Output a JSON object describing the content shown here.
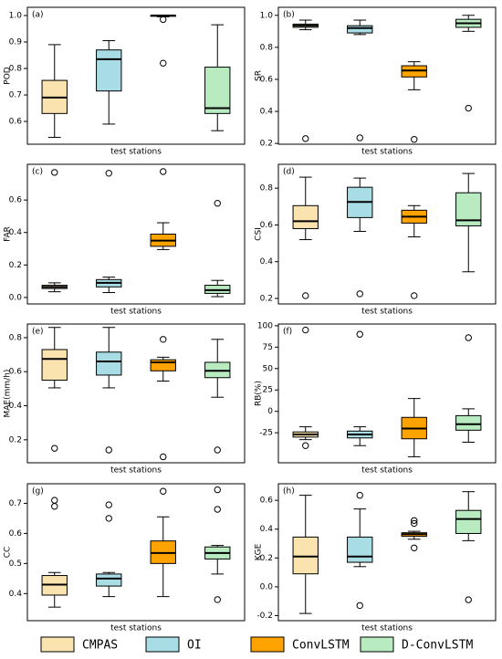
{
  "legend": [
    {
      "name": "CMPAS",
      "color": "#fbe3b0"
    },
    {
      "name": "OI",
      "color": "#a9dde6"
    },
    {
      "name": "ConvLSTM",
      "color": "#ffa300"
    },
    {
      "name": "D-ConvLSTM",
      "color": "#b8ecc0"
    }
  ],
  "chart_data": [
    {
      "type": "box",
      "panel": "(a)",
      "ylabel": "POD",
      "xlabel": "test stations",
      "ylim": [
        0.514,
        1.031
      ],
      "yticks": [
        0.6,
        0.7,
        0.8,
        0.9,
        {
          "value": 1.0,
          "label": "1.0"
        }
      ],
      "boxes": [
        {
          "whislo": 0.54,
          "q1": 0.63,
          "med": 0.69,
          "q3": 0.755,
          "whishi": 0.89,
          "fliers": []
        },
        {
          "whislo": 0.59,
          "q1": 0.715,
          "med": 0.835,
          "q3": 0.87,
          "whishi": 0.905,
          "fliers": []
        },
        {
          "whislo": 0.995,
          "q1": 0.997,
          "med": 1.0,
          "q3": 1.0,
          "whishi": 1.0,
          "fliers": [
            0.985,
            0.82
          ]
        },
        {
          "whislo": 0.565,
          "q1": 0.63,
          "med": 0.65,
          "q3": 0.805,
          "whishi": 0.965,
          "fliers": []
        }
      ]
    },
    {
      "type": "box",
      "panel": "(b)",
      "ylabel": "SR",
      "xlabel": "test stations",
      "ylim": [
        0.195,
        1.05
      ],
      "yticks": [
        0.2,
        0.4,
        0.6,
        0.8,
        {
          "value": 1.0,
          "label": "1.0"
        }
      ],
      "boxes": [
        {
          "whislo": 0.91,
          "q1": 0.925,
          "med": 0.935,
          "q3": 0.945,
          "whishi": 0.97,
          "fliers": [
            0.23
          ]
        },
        {
          "whislo": 0.88,
          "q1": 0.89,
          "med": 0.92,
          "q3": 0.935,
          "whishi": 0.97,
          "fliers": [
            0.235
          ]
        },
        {
          "whislo": 0.535,
          "q1": 0.615,
          "med": 0.655,
          "q3": 0.685,
          "whishi": 0.71,
          "fliers": [
            0.225
          ]
        },
        {
          "whislo": 0.9,
          "q1": 0.925,
          "med": 0.95,
          "q3": 0.975,
          "whishi": 1.0,
          "fliers": [
            0.42
          ]
        }
      ]
    },
    {
      "type": "box",
      "panel": "(c)",
      "ylabel": "FAR",
      "xlabel": "test stations",
      "ylim": [
        -0.04,
        0.82
      ],
      "yticks": [
        {
          "value": 0.0,
          "label": "0.0"
        },
        0.2,
        0.4,
        0.6
      ],
      "boxes": [
        {
          "whislo": 0.035,
          "q1": 0.055,
          "med": 0.065,
          "q3": 0.075,
          "whishi": 0.09,
          "fliers": [
            0.77
          ]
        },
        {
          "whislo": 0.03,
          "q1": 0.065,
          "med": 0.09,
          "q3": 0.11,
          "whishi": 0.125,
          "fliers": [
            0.765
          ]
        },
        {
          "whislo": 0.295,
          "q1": 0.315,
          "med": 0.35,
          "q3": 0.39,
          "whishi": 0.46,
          "fliers": [
            0.775
          ]
        },
        {
          "whislo": 0.005,
          "q1": 0.025,
          "med": 0.045,
          "q3": 0.075,
          "whishi": 0.105,
          "fliers": [
            0.58
          ]
        }
      ]
    },
    {
      "type": "box",
      "panel": "(d)",
      "ylabel": "CSI",
      "xlabel": "test stations",
      "ylim": [
        0.17,
        0.93
      ],
      "yticks": [
        0.2,
        0.4,
        0.6,
        0.8
      ],
      "boxes": [
        {
          "whislo": 0.52,
          "q1": 0.58,
          "med": 0.62,
          "q3": 0.705,
          "whishi": 0.86,
          "fliers": [
            0.215
          ]
        },
        {
          "whislo": 0.565,
          "q1": 0.64,
          "med": 0.725,
          "q3": 0.805,
          "whishi": 0.855,
          "fliers": [
            0.225
          ]
        },
        {
          "whislo": 0.535,
          "q1": 0.61,
          "med": 0.645,
          "q3": 0.68,
          "whishi": 0.705,
          "fliers": [
            0.215
          ]
        },
        {
          "whislo": 0.345,
          "q1": 0.595,
          "med": 0.625,
          "q3": 0.775,
          "whishi": 0.88,
          "fliers": []
        }
      ]
    },
    {
      "type": "box",
      "panel": "(e)",
      "ylabel": "MAE(mm/h)",
      "xlabel": "test stations",
      "ylim": [
        0.065,
        0.88
      ],
      "yticks": [
        0.2,
        0.4,
        0.6,
        0.8
      ],
      "boxes": [
        {
          "whislo": 0.505,
          "q1": 0.55,
          "med": 0.675,
          "q3": 0.73,
          "whishi": 0.86,
          "fliers": [
            0.15
          ]
        },
        {
          "whislo": 0.505,
          "q1": 0.58,
          "med": 0.66,
          "q3": 0.715,
          "whishi": 0.86,
          "fliers": [
            0.14
          ]
        },
        {
          "whislo": 0.545,
          "q1": 0.605,
          "med": 0.655,
          "q3": 0.67,
          "whishi": 0.685,
          "fliers": [
            0.79,
            0.1
          ]
        },
        {
          "whislo": 0.45,
          "q1": 0.565,
          "med": 0.605,
          "q3": 0.655,
          "whishi": 0.79,
          "fliers": [
            0.14
          ]
        }
      ]
    },
    {
      "type": "box",
      "panel": "(f)",
      "ylabel": "RB(%)",
      "xlabel": "test stations",
      "ylim": [
        -60,
        102
      ],
      "yticks": [
        -25,
        0,
        25,
        50,
        75,
        100
      ],
      "boxes": [
        {
          "whislo": -33,
          "q1": -30,
          "med": -27,
          "q3": -24,
          "whishi": -18,
          "fliers": [
            95,
            -40
          ]
        },
        {
          "whislo": -40,
          "q1": -31,
          "med": -27,
          "q3": -23,
          "whishi": -18,
          "fliers": [
            90
          ]
        },
        {
          "whislo": -53,
          "q1": -32,
          "med": -20,
          "q3": -7,
          "whishi": 15,
          "fliers": []
        },
        {
          "whislo": -36,
          "q1": -22,
          "med": -15,
          "q3": -5,
          "whishi": 3,
          "fliers": [
            86
          ]
        }
      ]
    },
    {
      "type": "box",
      "panel": "(g)",
      "ylabel": "CC",
      "xlabel": "test stations",
      "ylim": [
        0.31,
        0.765
      ],
      "yticks": [
        0.4,
        0.5,
        0.6,
        0.7
      ],
      "boxes": [
        {
          "whislo": 0.355,
          "q1": 0.395,
          "med": 0.43,
          "q3": 0.46,
          "whishi": 0.47,
          "fliers": [
            0.71,
            0.69
          ]
        },
        {
          "whislo": 0.39,
          "q1": 0.425,
          "med": 0.45,
          "q3": 0.465,
          "whishi": 0.47,
          "fliers": [
            0.695,
            0.65
          ]
        },
        {
          "whislo": 0.39,
          "q1": 0.5,
          "med": 0.535,
          "q3": 0.575,
          "whishi": 0.655,
          "fliers": [
            0.74
          ]
        },
        {
          "whislo": 0.465,
          "q1": 0.515,
          "med": 0.535,
          "q3": 0.555,
          "whishi": 0.56,
          "fliers": [
            0.745,
            0.68,
            0.38
          ]
        }
      ]
    },
    {
      "type": "box",
      "panel": "(h)",
      "ylabel": "KGE",
      "xlabel": "test stations",
      "ylim": [
        -0.235,
        0.715
      ],
      "yticks": [
        -0.2,
        {
          "value": 0.0,
          "label": "0.0"
        },
        0.2,
        0.4,
        0.6
      ],
      "boxes": [
        {
          "whislo": -0.185,
          "q1": 0.09,
          "med": 0.21,
          "q3": 0.345,
          "whishi": 0.635,
          "fliers": []
        },
        {
          "whislo": 0.14,
          "q1": 0.17,
          "med": 0.21,
          "q3": 0.345,
          "whishi": 0.54,
          "fliers": [
            0.635,
            -0.13
          ]
        },
        {
          "whislo": 0.33,
          "q1": 0.35,
          "med": 0.365,
          "q3": 0.375,
          "whishi": 0.385,
          "fliers": [
            0.46,
            0.44,
            0.27
          ]
        },
        {
          "whislo": 0.32,
          "q1": 0.37,
          "med": 0.47,
          "q3": 0.53,
          "whishi": 0.66,
          "fliers": [
            -0.09
          ]
        }
      ]
    }
  ]
}
